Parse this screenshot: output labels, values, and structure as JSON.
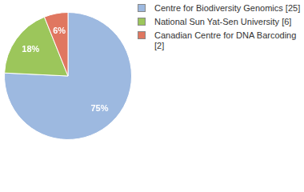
{
  "chart_data": {
    "type": "pie",
    "categories": [
      "Centre for Biodiversity Genomics [25]",
      "National Sun Yat-Sen University [6]",
      "Canadian Centre for DNA Barcoding [2]"
    ],
    "values": [
      75,
      18,
      6
    ],
    "value_labels": [
      "75%",
      "18%",
      "6%"
    ],
    "colors": [
      "#9db9e0",
      "#9cc65b",
      "#e07760"
    ],
    "data_labels": true,
    "legend": "top-right"
  }
}
